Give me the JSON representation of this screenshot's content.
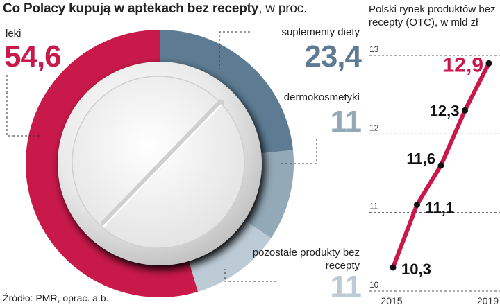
{
  "title": {
    "bold": "Co Polacy kupują w aptekach bez recepty",
    "rest": ", w proc."
  },
  "source": "Źródło: PMR, oprac. a.b.",
  "colors": {
    "leki": "#c8194a",
    "suplementy": "#5d7b92",
    "dermokosmetyki": "#93a9b8",
    "pozostale": "#bccbd6",
    "line": "#c8194a",
    "text": "#222222"
  },
  "chart_data": [
    {
      "type": "pie",
      "title": "Co Polacy kupują w aptekach bez recepty, w proc.",
      "series": [
        {
          "name": "leki",
          "label": "leki",
          "value": 54.6,
          "display": "54,6"
        },
        {
          "name": "suplementy",
          "label": "suplementy diety",
          "value": 23.4,
          "display": "23,4"
        },
        {
          "name": "dermokosmetyki",
          "label": "dermokosmetyki",
          "value": 11,
          "display": "11"
        },
        {
          "name": "pozostale",
          "label": "pozostałe produkty bez recepty",
          "value": 11,
          "display": "11"
        }
      ]
    },
    {
      "type": "line",
      "title": "Polski rynek produktów bez recepty (OTC), w mld zł",
      "x": [
        2015,
        2016,
        2017,
        2018,
        2019
      ],
      "xticks": [
        "2015",
        "2019"
      ],
      "y": [
        10.3,
        11.1,
        11.6,
        12.3,
        12.9
      ],
      "labels": [
        "10,3",
        "11,1",
        "11,6",
        "12,3",
        "12,9"
      ],
      "ylim": [
        10,
        13
      ],
      "yticks": [
        "10",
        "11",
        "12",
        "13"
      ],
      "grid": true
    }
  ]
}
